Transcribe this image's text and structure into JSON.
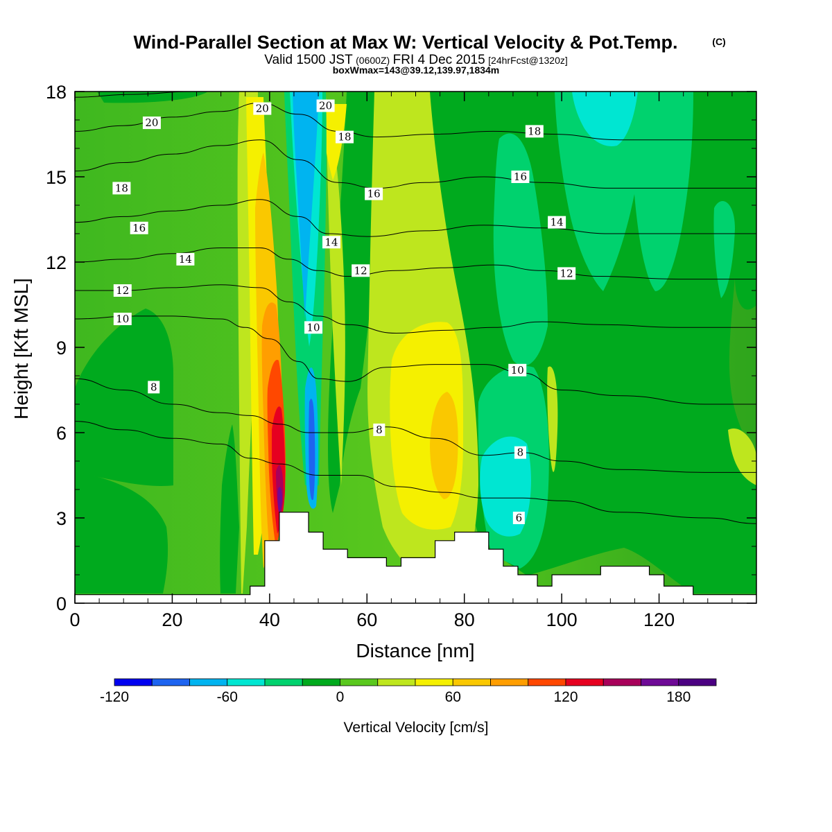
{
  "title": {
    "main": "Wind-Parallel Section at Max W: Vertical Velocity & Pot.Temp.",
    "copyright": "(C)",
    "valid_a": "Valid 1500 JST",
    "valid_b": "(0600Z)",
    "valid_c": "FRI 4 Dec 2015",
    "valid_d": "[24hrFcst@1320z]",
    "box": "boxWmax=143@39.12,139.97,1834m"
  },
  "chart_data": {
    "type": "heatmap",
    "subtype": "cross-section filled contour of vertical velocity with potential temperature contour lines",
    "xlabel": "Distance [nm]",
    "ylabel": "Height [Kft MSL]",
    "xlim": [
      0,
      140
    ],
    "ylim": [
      0,
      18
    ],
    "x_ticks": [
      0,
      20,
      40,
      60,
      80,
      100,
      120
    ],
    "y_ticks": [
      0,
      3,
      6,
      9,
      12,
      15,
      18
    ],
    "colorbar": {
      "label": "Vertical Velocity [cm/s]",
      "tick_values": [
        -120,
        -60,
        0,
        60,
        120,
        180
      ],
      "levels": [
        -120,
        -100,
        -80,
        -60,
        -40,
        -20,
        0,
        20,
        40,
        60,
        80,
        100,
        120,
        140,
        160,
        180,
        200
      ],
      "colors": [
        "#0000f0",
        "#1e64f0",
        "#00b4f0",
        "#00e6d2",
        "#00d26e",
        "#00aa1e",
        "#5ac81e",
        "#bee61e",
        "#f5f000",
        "#fac800",
        "#ff9e00",
        "#ff4800",
        "#e60020",
        "#a8005a",
        "#6e0a96",
        "#4b0082"
      ]
    },
    "theta_contour_labels": [
      {
        "label": "20",
        "x": 15.8,
        "y": 16.9
      },
      {
        "label": "20",
        "x": 38.5,
        "y": 17.4
      },
      {
        "label": "20",
        "x": 51.5,
        "y": 17.5
      },
      {
        "label": "18",
        "x": 9.6,
        "y": 14.6
      },
      {
        "label": "18",
        "x": 55.4,
        "y": 16.4
      },
      {
        "label": "18",
        "x": 94.4,
        "y": 16.6
      },
      {
        "label": "16",
        "x": 13.2,
        "y": 13.2
      },
      {
        "label": "16",
        "x": 61.4,
        "y": 14.4
      },
      {
        "label": "16",
        "x": 91.5,
        "y": 15.0
      },
      {
        "label": "14",
        "x": 22.7,
        "y": 12.1
      },
      {
        "label": "14",
        "x": 52.7,
        "y": 12.7
      },
      {
        "label": "14",
        "x": 99.0,
        "y": 13.4
      },
      {
        "label": "12",
        "x": 9.8,
        "y": 11.0
      },
      {
        "label": "12",
        "x": 58.7,
        "y": 11.7
      },
      {
        "label": "12",
        "x": 101.0,
        "y": 11.6
      },
      {
        "label": "10",
        "x": 9.8,
        "y": 10.0
      },
      {
        "label": "10",
        "x": 49.0,
        "y": 9.7
      },
      {
        "label": "10",
        "x": 90.9,
        "y": 8.2
      },
      {
        "label": "8",
        "x": 16.2,
        "y": 7.6
      },
      {
        "label": "8",
        "x": 62.5,
        "y": 6.1
      },
      {
        "label": "8",
        "x": 91.5,
        "y": 5.3
      },
      {
        "label": "6",
        "x": 91.2,
        "y": 3.0
      }
    ],
    "theta_contour_lines": [
      [
        [
          0,
          6.4
        ],
        [
          10,
          6.1
        ],
        [
          20,
          5.8
        ],
        [
          30,
          5.6
        ],
        [
          36,
          5.1
        ],
        [
          42,
          4.9
        ],
        [
          50,
          4.5
        ],
        [
          58,
          4.5
        ],
        [
          66,
          4.1
        ],
        [
          76,
          3.9
        ],
        [
          84,
          3.7
        ],
        [
          92,
          3.7
        ],
        [
          100,
          3.6
        ],
        [
          112,
          3.2
        ],
        [
          130,
          3.0
        ],
        [
          140,
          2.8
        ]
      ],
      [
        [
          0,
          7.9
        ],
        [
          10,
          7.5
        ],
        [
          20,
          7.0
        ],
        [
          30,
          6.7
        ],
        [
          36,
          6.6
        ],
        [
          42,
          6.3
        ],
        [
          48,
          6.0
        ],
        [
          56,
          6.0
        ],
        [
          64,
          6.2
        ],
        [
          74,
          5.8
        ],
        [
          84,
          5.2
        ],
        [
          92,
          5.3
        ],
        [
          100,
          5.0
        ],
        [
          112,
          4.7
        ],
        [
          130,
          4.6
        ],
        [
          140,
          4.6
        ]
      ],
      [
        [
          0,
          10.0
        ],
        [
          12,
          10.1
        ],
        [
          20,
          10.1
        ],
        [
          30,
          10.0
        ],
        [
          35,
          9.7
        ],
        [
          40,
          9.3
        ],
        [
          46,
          8.5
        ],
        [
          50,
          7.9
        ],
        [
          56,
          7.8
        ],
        [
          64,
          8.3
        ],
        [
          74,
          8.4
        ],
        [
          84,
          8.4
        ],
        [
          92,
          8.1
        ],
        [
          100,
          7.5
        ],
        [
          112,
          7.3
        ],
        [
          130,
          7.0
        ],
        [
          140,
          7.0
        ]
      ],
      [
        [
          0,
          11.0
        ],
        [
          10,
          11.0
        ],
        [
          20,
          11.1
        ],
        [
          30,
          11.2
        ],
        [
          38,
          11.1
        ],
        [
          44,
          10.6
        ],
        [
          50,
          10.1
        ],
        [
          56,
          9.8
        ],
        [
          66,
          9.5
        ],
        [
          76,
          9.6
        ],
        [
          86,
          9.7
        ],
        [
          96,
          9.9
        ],
        [
          108,
          9.8
        ],
        [
          124,
          9.7
        ],
        [
          140,
          9.7
        ]
      ],
      [
        [
          0,
          12.0
        ],
        [
          10,
          12.1
        ],
        [
          20,
          12.3
        ],
        [
          30,
          12.5
        ],
        [
          38,
          12.5
        ],
        [
          44,
          12.1
        ],
        [
          50,
          11.7
        ],
        [
          56,
          11.5
        ],
        [
          66,
          11.7
        ],
        [
          76,
          11.8
        ],
        [
          86,
          11.9
        ],
        [
          96,
          11.7
        ],
        [
          108,
          11.5
        ],
        [
          124,
          11.4
        ],
        [
          140,
          11.4
        ]
      ],
      [
        [
          0,
          13.4
        ],
        [
          10,
          13.6
        ],
        [
          20,
          13.8
        ],
        [
          30,
          14.0
        ],
        [
          38,
          14.2
        ],
        [
          46,
          13.6
        ],
        [
          52,
          13.0
        ],
        [
          60,
          12.9
        ],
        [
          72,
          13.1
        ],
        [
          84,
          13.3
        ],
        [
          96,
          13.2
        ],
        [
          110,
          13.0
        ],
        [
          126,
          13.0
        ],
        [
          140,
          13.0
        ]
      ],
      [
        [
          0,
          15.2
        ],
        [
          10,
          15.5
        ],
        [
          20,
          15.8
        ],
        [
          30,
          16.1
        ],
        [
          38,
          16.3
        ],
        [
          46,
          15.6
        ],
        [
          54,
          14.8
        ],
        [
          62,
          14.6
        ],
        [
          72,
          14.8
        ],
        [
          84,
          15.0
        ],
        [
          96,
          14.8
        ],
        [
          110,
          14.6
        ],
        [
          126,
          14.6
        ],
        [
          140,
          14.6
        ]
      ],
      [
        [
          0,
          16.6
        ],
        [
          10,
          16.8
        ],
        [
          20,
          17.1
        ],
        [
          30,
          17.3
        ],
        [
          38,
          17.6
        ],
        [
          46,
          17.2
        ],
        [
          54,
          16.6
        ],
        [
          62,
          16.4
        ],
        [
          74,
          16.5
        ],
        [
          86,
          16.6
        ],
        [
          98,
          16.5
        ],
        [
          112,
          16.3
        ],
        [
          126,
          16.3
        ],
        [
          140,
          16.3
        ]
      ],
      [
        [
          0,
          17.8
        ],
        [
          12,
          17.9
        ],
        [
          24,
          18.0
        ],
        [
          34,
          18.0
        ]
      ]
    ],
    "terrain_profile": [
      [
        0,
        0.3
      ],
      [
        36,
        0.3
      ],
      [
        36,
        0.6
      ],
      [
        39,
        0.6
      ],
      [
        39,
        2.2
      ],
      [
        42,
        2.2
      ],
      [
        42,
        3.2
      ],
      [
        48,
        3.2
      ],
      [
        48,
        2.5
      ],
      [
        51,
        2.5
      ],
      [
        51,
        1.9
      ],
      [
        56,
        1.9
      ],
      [
        56,
        1.6
      ],
      [
        64,
        1.6
      ],
      [
        64,
        1.3
      ],
      [
        67,
        1.3
      ],
      [
        67,
        1.6
      ],
      [
        74,
        1.6
      ],
      [
        74,
        2.2
      ],
      [
        78,
        2.2
      ],
      [
        78,
        2.5
      ],
      [
        85,
        2.5
      ],
      [
        85,
        1.9
      ],
      [
        88,
        1.9
      ],
      [
        88,
        1.3
      ],
      [
        91,
        1.3
      ],
      [
        91,
        1.0
      ],
      [
        95,
        1.0
      ],
      [
        95,
        0.6
      ],
      [
        98,
        0.6
      ],
      [
        98,
        1.0
      ],
      [
        108,
        1.0
      ],
      [
        108,
        1.3
      ],
      [
        118,
        1.3
      ],
      [
        118,
        1.0
      ],
      [
        121,
        1.0
      ],
      [
        121,
        0.6
      ],
      [
        127,
        0.6
      ],
      [
        127,
        0.3
      ],
      [
        140,
        0.3
      ]
    ]
  }
}
